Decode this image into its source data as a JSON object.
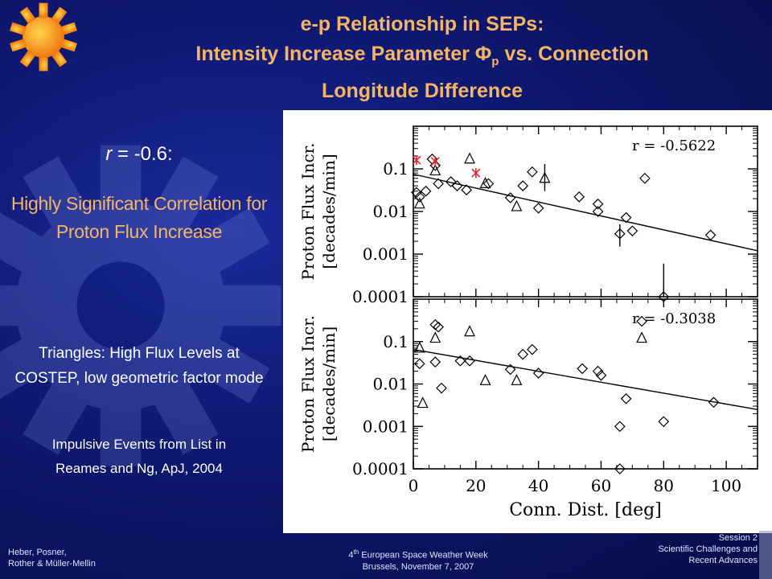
{
  "slide": {
    "title_line1": "e-p Relationship in SEPs:",
    "title_line2_pre": "Intensity Increase Parameter Φ",
    "title_line2_sub": "p",
    "title_line2_post": " vs. Connection",
    "title_line3": "Longitude Difference",
    "r_var": "r",
    "r_value": " = -0.6:",
    "significance": "Highly Significant Correlation for Proton Flux Increase",
    "triangles_note": "Triangles: High Flux Levels at COSTEP, low geometric factor mode",
    "impulsive_line1": "Impulsive Events from List in",
    "impulsive_line2": "Reames and Ng, ApJ, 2004"
  },
  "footer": {
    "left_line1": "Heber, Posner,",
    "left_line2": "Rother & Müller-Mellin",
    "mid_line1_pre": "4",
    "mid_line1_sup": "th",
    "mid_line1_post": " European Space Weather Week",
    "mid_line2": "Brussels, November 7, 2007",
    "right_line1": "Session 2",
    "right_line2": "Scientific Challenges and",
    "right_line3": "Recent Advances"
  },
  "colors": {
    "title": "#f5b567",
    "highlight": "#f5b567",
    "bg": "#0e1870",
    "impulsive": "#e8202a"
  },
  "chart_data": [
    {
      "type": "scatter",
      "ylabel": "Proton Flux Incr. [decades/min]",
      "xlabel": "",
      "annotation": "r = -0.5622",
      "xlim": [
        0,
        110
      ],
      "ylim_log10": [
        -4,
        0
      ],
      "x_ticks": [
        0,
        20,
        40,
        60,
        80,
        100
      ],
      "y_ticks": [
        0.1,
        0.01,
        0.001,
        0.0001
      ],
      "y_tick_labels": [
        "0.1",
        "0.01",
        "0.001",
        "0.0001"
      ],
      "fit": [
        [
          0,
          0.075
        ],
        [
          110,
          0.0012
        ]
      ],
      "diamonds": [
        [
          1,
          0.028
        ],
        [
          2,
          0.022
        ],
        [
          4,
          0.03
        ],
        [
          6,
          0.17
        ],
        [
          7,
          0.12
        ],
        [
          8,
          0.045
        ],
        [
          12,
          0.05
        ],
        [
          14,
          0.04
        ],
        [
          17,
          0.032
        ],
        [
          24,
          0.045
        ],
        [
          31,
          0.021
        ],
        [
          35,
          0.04
        ],
        [
          38,
          0.085
        ],
        [
          40,
          0.012
        ],
        [
          53,
          0.022
        ],
        [
          59,
          0.015
        ],
        [
          59,
          0.01
        ],
        [
          66,
          0.003
        ],
        [
          68,
          0.0072
        ],
        [
          70,
          0.0035
        ],
        [
          74,
          0.06
        ],
        [
          95,
          0.0028
        ],
        [
          80,
          0.0001
        ]
      ],
      "triangles": [
        [
          2,
          0.015
        ],
        [
          7,
          0.09
        ],
        [
          18,
          0.17
        ],
        [
          23,
          0.045
        ],
        [
          33,
          0.013
        ],
        [
          42,
          0.06
        ]
      ],
      "crosses": [
        [
          1,
          0.16
        ],
        [
          7,
          0.15
        ],
        [
          20,
          0.08
        ]
      ],
      "error_bars": [
        [
          42,
          0.03,
          0.13
        ],
        [
          66,
          0.0015,
          0.005
        ],
        [
          80,
          0.0001,
          0.0006
        ]
      ]
    },
    {
      "type": "scatter",
      "ylabel": "Proton Flux Incr. [decades/min]",
      "xlabel": "Conn. Dist. [deg]",
      "annotation": "r = -0.3038",
      "xlim": [
        0,
        110
      ],
      "ylim_log10": [
        -4,
        0
      ],
      "x_ticks": [
        0,
        20,
        40,
        60,
        80,
        100
      ],
      "x_tick_labels": [
        "0",
        "20",
        "40",
        "60",
        "80",
        "100"
      ],
      "y_ticks": [
        0.1,
        0.01,
        0.001,
        0.0001
      ],
      "y_tick_labels": [
        "0.1",
        "0.01",
        "0.001",
        "0.0001"
      ],
      "fit": [
        [
          0,
          0.065
        ],
        [
          110,
          0.0025
        ]
      ],
      "diamonds": [
        [
          2,
          0.03
        ],
        [
          7,
          0.033
        ],
        [
          7,
          0.25
        ],
        [
          8,
          0.22
        ],
        [
          9,
          0.008
        ],
        [
          15,
          0.035
        ],
        [
          18,
          0.035
        ],
        [
          31,
          0.022
        ],
        [
          35,
          0.05
        ],
        [
          38,
          0.065
        ],
        [
          40,
          0.018
        ],
        [
          54,
          0.023
        ],
        [
          59,
          0.02
        ],
        [
          60,
          0.016
        ],
        [
          66,
          0.001
        ],
        [
          68,
          0.0045
        ],
        [
          73,
          0.3
        ],
        [
          80,
          0.0013
        ],
        [
          96,
          0.0037
        ],
        [
          66,
          0.0001
        ]
      ],
      "triangles": [
        [
          2,
          0.07
        ],
        [
          3,
          0.0035
        ],
        [
          7,
          0.12
        ],
        [
          18,
          0.17
        ],
        [
          23,
          0.012
        ],
        [
          33,
          0.012
        ],
        [
          73,
          0.12
        ]
      ],
      "crosses": [],
      "error_bars": []
    }
  ]
}
